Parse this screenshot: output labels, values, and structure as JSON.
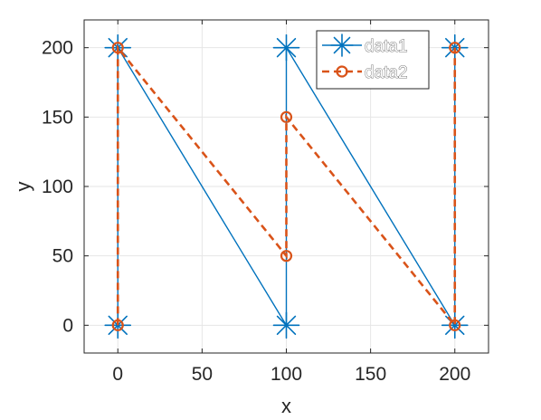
{
  "chart_data": {
    "type": "line",
    "title": "",
    "xlabel": "x",
    "ylabel": "y",
    "xlim": [
      -20,
      220
    ],
    "ylim": [
      -20,
      220
    ],
    "xticks": [
      0,
      50,
      100,
      150,
      200
    ],
    "yticks": [
      0,
      50,
      100,
      150,
      200
    ],
    "grid": true,
    "legend_position": "top-right",
    "series": [
      {
        "name": "data1",
        "color": "#0072BD",
        "line_style": "solid",
        "marker": "asterisk",
        "x": [
          0,
          0,
          100,
          100,
          200,
          200
        ],
        "y": [
          0,
          200,
          0,
          200,
          0,
          200
        ]
      },
      {
        "name": "data2",
        "color": "#D95319",
        "line_style": "dashed",
        "marker": "circle",
        "x": [
          0,
          0,
          100,
          100,
          200,
          200
        ],
        "y": [
          0,
          200,
          50,
          150,
          0,
          200
        ]
      }
    ]
  }
}
